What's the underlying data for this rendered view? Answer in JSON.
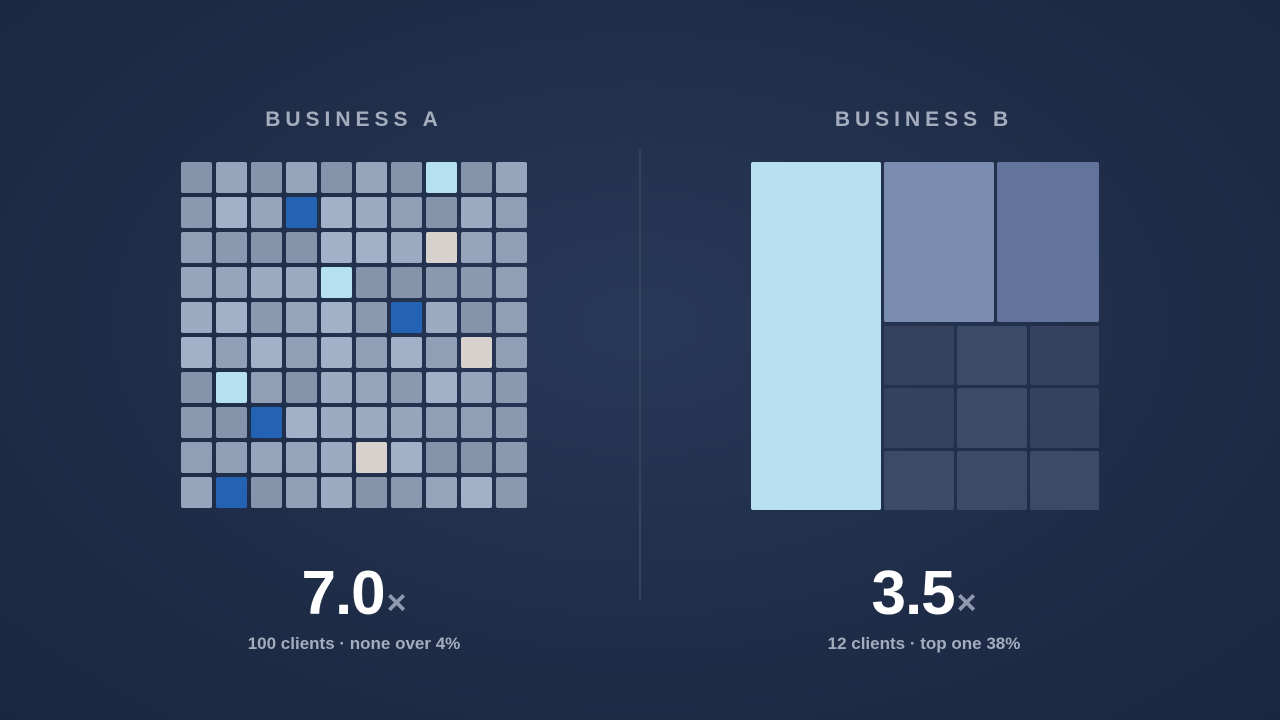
{
  "panel_a": {
    "title": "BUSINESS A",
    "multiple_value": "7.0",
    "multiple_unit": "×",
    "caption": "100 clients · none over 4%",
    "colors": {
      "base": [
        "#8593ab",
        "#8a98b0",
        "#909eb6",
        "#96a4bc",
        "#9caac2",
        "#a2b0c8"
      ],
      "highlight_blue": "#2463b4",
      "highlight_light": "#b5e0ef",
      "highlight_beige": "#d9d1cd"
    },
    "highlights": [
      {
        "row": 0,
        "col": 7,
        "type": "light"
      },
      {
        "row": 1,
        "col": 3,
        "type": "blue"
      },
      {
        "row": 2,
        "col": 7,
        "type": "beige"
      },
      {
        "row": 3,
        "col": 4,
        "type": "light"
      },
      {
        "row": 4,
        "col": 6,
        "type": "blue"
      },
      {
        "row": 5,
        "col": 8,
        "type": "beige"
      },
      {
        "row": 6,
        "col": 1,
        "type": "light"
      },
      {
        "row": 7,
        "col": 2,
        "type": "blue"
      },
      {
        "row": 8,
        "col": 5,
        "type": "beige"
      },
      {
        "row": 9,
        "col": 1,
        "type": "blue"
      }
    ]
  },
  "panel_b": {
    "title": "BUSINESS B",
    "multiple_value": "3.5",
    "multiple_unit": "×",
    "caption": "12 clients · top one 38%",
    "colors": {
      "top_client": "#b8e0f0",
      "second": "#7a8caf",
      "third": "#62749c",
      "small_a": "#34425d",
      "small_b": "#3b4a67"
    }
  }
}
